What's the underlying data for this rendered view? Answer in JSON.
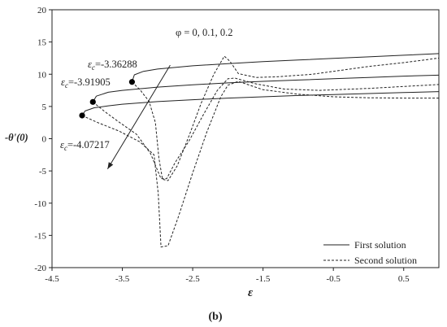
{
  "chart_data": {
    "type": "line",
    "panel_label": "(b)",
    "xlabel": "ε",
    "ylabel": "-θ'(0)",
    "xlim": [
      -4.5,
      1.0
    ],
    "ylim": [
      -20,
      20
    ],
    "xticks": [
      -4.5,
      -3.5,
      -2.5,
      -1.5,
      -0.5,
      0.5
    ],
    "yticks": [
      -20,
      -15,
      -10,
      -5,
      0,
      5,
      10,
      15,
      20
    ],
    "xtick_labels": [
      "-4.5",
      "-3.5",
      "-2.5",
      "-1.5",
      "-0.5",
      "0.5"
    ],
    "ytick_labels": [
      "-20",
      "-15",
      "-10",
      "-5",
      "0",
      "5",
      "10",
      "15",
      "20"
    ],
    "grid": false,
    "legend_position": "bottom-right",
    "legend": [
      {
        "label": "First solution",
        "style": "solid"
      },
      {
        "label": "Second solution",
        "style": "dashed"
      }
    ],
    "annotation_arrow": {
      "label": "φ = 0, 0.1, 0.2",
      "from": [
        -2.82,
        11.4
      ],
      "to": [
        -3.71,
        -4.7
      ]
    },
    "critical_points": [
      {
        "label_prefix": "ε",
        "label_sub": "c",
        "label_value": "=-3.36288",
        "x": -3.36288,
        "y": 8.8
      },
      {
        "label_prefix": "ε",
        "label_sub": "c",
        "label_value": "=-3.91905",
        "x": -3.91905,
        "y": 5.7
      },
      {
        "label_prefix": "ε",
        "label_sub": "c",
        "label_value": "=-4.07217",
        "x": -4.07217,
        "y": 3.6
      }
    ],
    "series": [
      {
        "style": "solid",
        "x": [
          -3.36288,
          -3.33,
          -3.2,
          -3.0,
          -2.5,
          -2.0,
          -1.5,
          -1.0,
          -0.5,
          0.0,
          0.5,
          1.0
        ],
        "y": [
          8.8,
          9.9,
          10.45,
          10.8,
          11.3,
          11.65,
          11.95,
          12.2,
          12.45,
          12.7,
          12.95,
          13.2
        ]
      },
      {
        "style": "solid",
        "x": [
          -3.91905,
          -3.87,
          -3.7,
          -3.5,
          -3.0,
          -2.5,
          -2.0,
          -1.5,
          -1.0,
          -0.5,
          0.0,
          0.5,
          1.0
        ],
        "y": [
          5.7,
          6.6,
          7.2,
          7.5,
          8.0,
          8.35,
          8.65,
          8.9,
          9.1,
          9.3,
          9.5,
          9.7,
          9.85
        ]
      },
      {
        "style": "solid",
        "x": [
          -4.07217,
          -4.03,
          -3.9,
          -3.7,
          -3.5,
          -3.0,
          -2.5,
          -2.0,
          -1.5,
          -1.0,
          -0.5,
          0.0,
          0.5,
          1.0
        ],
        "y": [
          3.6,
          4.3,
          4.8,
          5.1,
          5.35,
          5.75,
          6.05,
          6.3,
          6.5,
          6.7,
          6.85,
          7.0,
          7.15,
          7.3
        ]
      },
      {
        "style": "dashed",
        "x": [
          -3.36288,
          -3.25,
          -3.12,
          -3.03,
          -2.98,
          -2.93,
          -2.85,
          -2.72,
          -2.55,
          -2.38,
          -2.2,
          -2.05,
          -1.97,
          -1.85,
          -1.6,
          -1.3,
          -0.8,
          0.0,
          0.5,
          1.0
        ],
        "y": [
          8.8,
          7.6,
          5.8,
          2.5,
          -3.0,
          -6.3,
          -6.5,
          -4.2,
          0.5,
          5.5,
          10.0,
          12.8,
          12.0,
          10.1,
          9.5,
          9.6,
          10.0,
          11.2,
          11.8,
          12.5
        ]
      },
      {
        "style": "dashed",
        "x": [
          -3.91905,
          -3.75,
          -3.55,
          -3.3,
          -3.1,
          -2.95,
          -2.87,
          -2.75,
          -2.55,
          -2.35,
          -2.15,
          -2.0,
          -1.9,
          -1.6,
          -1.2,
          -0.7,
          0.0,
          0.5,
          1.0
        ],
        "y": [
          5.7,
          4.2,
          2.6,
          0.7,
          -2.3,
          -6.2,
          -6.2,
          -3.7,
          -0.3,
          3.7,
          7.5,
          9.3,
          9.4,
          8.5,
          7.7,
          7.5,
          7.8,
          8.1,
          8.4
        ]
      },
      {
        "style": "dashed",
        "x": [
          -4.07217,
          -3.85,
          -3.55,
          -3.25,
          -3.05,
          -2.99,
          -2.95,
          -2.85,
          -2.7,
          -2.5,
          -2.3,
          -2.1,
          -2.0,
          -1.85,
          -1.5,
          -1.0,
          -0.5,
          0.0,
          0.5,
          1.0
        ],
        "y": [
          3.6,
          2.5,
          1.2,
          -0.5,
          -2.5,
          -8.5,
          -16.8,
          -16.6,
          -12.0,
          -5.3,
          1.0,
          6.5,
          8.3,
          8.9,
          7.6,
          6.9,
          6.5,
          6.35,
          6.3,
          6.3
        ]
      }
    ]
  }
}
